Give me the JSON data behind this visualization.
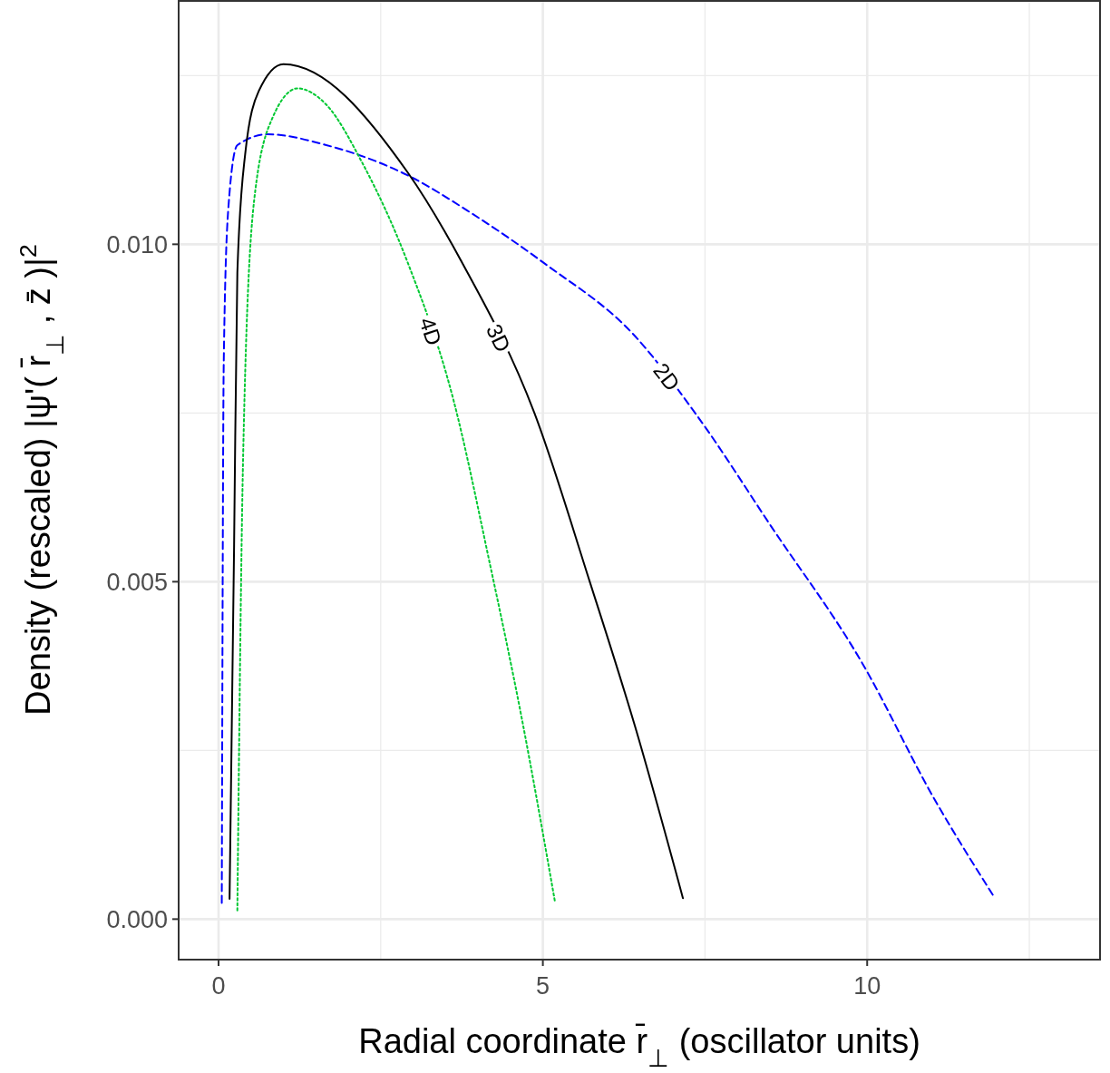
{
  "chart_data": {
    "type": "line",
    "xlabel": "Radial coordinate  r̄$_{⊥}$ (oscillator units)",
    "ylabel": "Density (rescaled)  |ψ'( r̄$_{⊥}$ , z̄ )|$^{2}$",
    "xlim": [
      -0.615,
      13.59
    ],
    "ylim": [
      -0.0006,
      0.01362
    ],
    "xticks": [
      0,
      5,
      10
    ],
    "yticks": [
      {
        "value": 0,
        "label": "0.000"
      },
      {
        "value": 0.005,
        "label": "0.005"
      },
      {
        "value": 0.01,
        "label": "0.010"
      }
    ],
    "grid": true,
    "marker": "none",
    "series": [
      {
        "name": "2D",
        "color": "#0000ff",
        "line_style": "dashed",
        "x": [
          0.05,
          0.08,
          0.15,
          0.29,
          0.76,
          1.66,
          2.92,
          3.9,
          5.02,
          6.42,
          7.4,
          8.52,
          9.92,
          11.03,
          11.97
        ],
        "values": [
          0.00024,
          0.00824,
          0.01052,
          0.01147,
          0.01163,
          0.01147,
          0.01102,
          0.01046,
          0.00972,
          0.00864,
          0.00743,
          0.00582,
          0.0038,
          0.00179,
          0.00031
        ]
      },
      {
        "name": "3D",
        "color": "#000000",
        "line_style": "solid",
        "x": [
          0.17,
          0.24,
          0.29,
          0.41,
          0.62,
          1.0,
          2.92,
          3.76,
          4.87,
          5.72,
          6.42,
          7.16
        ],
        "values": [
          0.0003,
          0.00555,
          0.00958,
          0.01133,
          0.01227,
          0.01267,
          0.01106,
          0.00972,
          0.0075,
          0.00501,
          0.00286,
          0.00031
        ]
      },
      {
        "name": "4D",
        "color": "#00c832",
        "line_style": "dotted",
        "x": [
          0.29,
          0.38,
          0.55,
          0.83,
          1.22,
          1.66,
          2.22,
          2.92,
          3.62,
          4.18,
          4.67,
          5.19
        ],
        "values": [
          0.00013,
          0.0069,
          0.01066,
          0.01187,
          0.01231,
          0.01207,
          0.0112,
          0.00972,
          0.0077,
          0.00528,
          0.003,
          0.00024
        ]
      }
    ]
  }
}
